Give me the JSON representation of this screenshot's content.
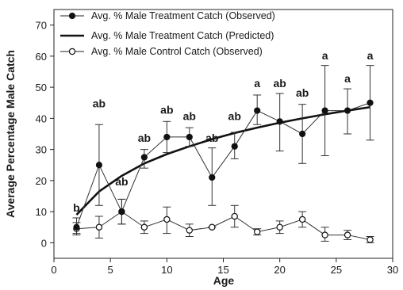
{
  "chart_data": {
    "type": "line",
    "xlabel": "Age",
    "ylabel": "Average Percentage Male Catch",
    "xlim": [
      0,
      30
    ],
    "ylim": [
      -5,
      75
    ],
    "xticks": [
      0,
      5,
      10,
      15,
      20,
      25,
      30
    ],
    "yticks": [
      0,
      10,
      20,
      30,
      40,
      50,
      60,
      70
    ],
    "legend_position": "top-left",
    "series": [
      {
        "name": "Avg. % Male Treatment Catch (Observed)",
        "marker": "filled-circle",
        "x": [
          2,
          4,
          6,
          8,
          10,
          12,
          14,
          16,
          18,
          20,
          22,
          24,
          26,
          28
        ],
        "y": [
          5,
          25,
          10,
          27.5,
          34,
          34,
          21,
          31,
          42.5,
          39,
          35,
          42.5,
          42.5,
          45
        ],
        "err_upper": [
          8,
          38,
          14,
          30,
          39,
          37,
          30.5,
          35.5,
          47.5,
          48,
          44.5,
          57,
          49.5,
          57
        ],
        "err_lower": [
          3,
          12,
          6,
          24,
          29,
          31,
          12,
          27,
          38,
          29.5,
          25.5,
          28,
          35,
          33
        ]
      },
      {
        "name": "Avg. % Male Treatment Catch (Predicted)",
        "marker": "none",
        "x": [
          2,
          4,
          6,
          8,
          10,
          12,
          14,
          16,
          18,
          20,
          22,
          24,
          26,
          28
        ],
        "y": [
          9,
          16.5,
          21.5,
          25.5,
          28.5,
          31,
          33.3,
          35.3,
          37,
          38.6,
          40,
          41.3,
          42.5,
          43.6
        ]
      },
      {
        "name": "Avg. % Male Control Catch (Observed)",
        "marker": "open-circle",
        "x": [
          2,
          4,
          6,
          8,
          10,
          12,
          14,
          16,
          18,
          20,
          22,
          24,
          26,
          28
        ],
        "y": [
          4.5,
          5,
          10,
          5,
          7.5,
          4,
          5,
          8.5,
          3.5,
          5,
          7.5,
          2.5,
          2.5,
          1
        ],
        "err_upper": [
          6.5,
          8.5,
          14,
          7,
          11.5,
          6,
          5,
          12,
          4.5,
          7,
          10,
          5,
          4,
          2
        ],
        "err_lower": [
          2.5,
          1.5,
          6,
          3,
          3,
          2,
          5,
          5,
          2.5,
          3,
          5,
          0.5,
          1,
          0
        ]
      }
    ],
    "annotations": [
      {
        "text": "b",
        "x": 2,
        "y": 10
      },
      {
        "text": "ab",
        "x": 4,
        "y": 43.5
      },
      {
        "text": "ab",
        "x": 6,
        "y": 18.5
      },
      {
        "text": "ab",
        "x": 8,
        "y": 32.5
      },
      {
        "text": "ab",
        "x": 10,
        "y": 41.5
      },
      {
        "text": "ab",
        "x": 12,
        "y": 39.5
      },
      {
        "text": "ab",
        "x": 14,
        "y": 32.5
      },
      {
        "text": "ab",
        "x": 16,
        "y": 39.5
      },
      {
        "text": "a",
        "x": 18,
        "y": 50
      },
      {
        "text": "ab",
        "x": 20,
        "y": 50
      },
      {
        "text": "ab",
        "x": 22,
        "y": 47
      },
      {
        "text": "a",
        "x": 24,
        "y": 59
      },
      {
        "text": "a",
        "x": 26,
        "y": 51.5
      },
      {
        "text": "a",
        "x": 28,
        "y": 59
      }
    ]
  }
}
